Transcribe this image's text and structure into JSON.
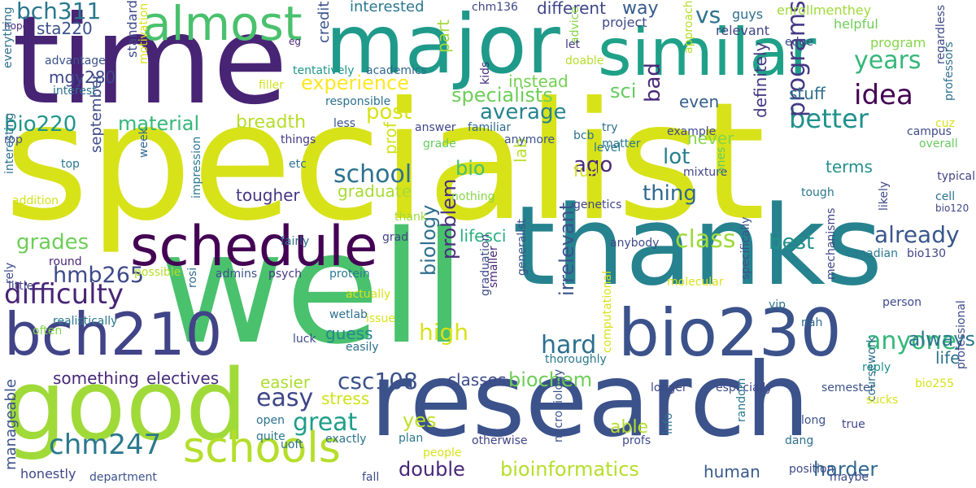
{
  "words": [
    {
      "text": "specialist",
      "color": "#d8e219"
    },
    {
      "text": "well",
      "color": "#4ac16d"
    },
    {
      "text": "time",
      "color": "#482475"
    },
    {
      "text": "major",
      "color": "#1f9a8a"
    },
    {
      "text": "similar",
      "color": "#1fa188"
    },
    {
      "text": "thanks",
      "color": "#26828e"
    },
    {
      "text": "research",
      "color": "#3b528b"
    },
    {
      "text": "good",
      "color": "#a0da39"
    },
    {
      "text": "schedule",
      "color": "#440154"
    },
    {
      "text": "bio230",
      "color": "#3b528b"
    },
    {
      "text": "bch210",
      "color": "#414487"
    },
    {
      "text": "almost",
      "color": "#4ac16d"
    },
    {
      "text": "schools",
      "color": "#b5de2b"
    },
    {
      "text": "anyone",
      "color": "#35b779"
    },
    {
      "text": "difficulty",
      "color": "#482475"
    },
    {
      "text": "chm247",
      "color": "#2a788e"
    },
    {
      "text": "years",
      "color": "#35b779"
    },
    {
      "text": "bch311",
      "color": "#2a788e"
    },
    {
      "text": "idea",
      "color": "#440154"
    },
    {
      "text": "better",
      "color": "#21918c"
    },
    {
      "text": "class",
      "color": "#a0da39"
    },
    {
      "text": "already",
      "color": "#39568c"
    },
    {
      "text": "hard",
      "color": "#2d708e"
    },
    {
      "text": "hmb265",
      "color": "#3e4989"
    },
    {
      "text": "school",
      "color": "#2c728e"
    },
    {
      "text": "great",
      "color": "#1f9e89"
    },
    {
      "text": "easy",
      "color": "#404688"
    },
    {
      "text": "csc108",
      "color": "#3b528b"
    },
    {
      "text": "bioinformatics",
      "color": "#b5de2b"
    },
    {
      "text": "biochem",
      "color": "#6ece58"
    },
    {
      "text": "experience",
      "color": "#fde725"
    },
    {
      "text": "specialists",
      "color": "#6ece58"
    },
    {
      "text": "material",
      "color": "#35b779"
    },
    {
      "text": "breadth",
      "color": "#b5de2b"
    },
    {
      "text": "average",
      "color": "#25848e"
    },
    {
      "text": "grades",
      "color": "#6ece58"
    },
    {
      "text": "high",
      "color": "#d8e219"
    },
    {
      "text": "lot",
      "color": "#277f8e"
    },
    {
      "text": "thing",
      "color": "#31688e"
    },
    {
      "text": "post",
      "color": "#d8e219"
    },
    {
      "text": "best",
      "color": "#21918c"
    },
    {
      "text": "programs",
      "color": "#443983"
    },
    {
      "text": "electives",
      "color": "#472d7b"
    },
    {
      "text": "something",
      "color": "#482878"
    },
    {
      "text": "double",
      "color": "#482878"
    },
    {
      "text": "harder",
      "color": "#31688e"
    },
    {
      "text": "biology",
      "color": "#2d708e"
    },
    {
      "text": "problem",
      "color": "#472f7d"
    },
    {
      "text": "always",
      "color": "#2a788e"
    },
    {
      "text": "bio220",
      "color": "#1f968b"
    },
    {
      "text": "mgy280",
      "color": "#3e4989"
    },
    {
      "text": "sta220",
      "color": "#3b528b"
    },
    {
      "text": "vs",
      "color": "#2c728e"
    },
    {
      "text": "interested",
      "color": "#2a788e"
    },
    {
      "text": "different",
      "color": "#404688"
    },
    {
      "text": "way",
      "color": "#375a8c"
    },
    {
      "text": "tougher",
      "color": "#453781"
    },
    {
      "text": "graduate",
      "color": "#a8db34"
    },
    {
      "text": "ago",
      "color": "#482878"
    },
    {
      "text": "bio",
      "color": "#46c06f"
    },
    {
      "text": "lifesci",
      "color": "#29af7f"
    },
    {
      "text": "bad",
      "color": "#482878"
    },
    {
      "text": "sci",
      "color": "#65cb5e"
    },
    {
      "text": "even",
      "color": "#355f8d"
    },
    {
      "text": "stuff",
      "color": "#2d708e"
    },
    {
      "text": "never",
      "color": "#86d549"
    },
    {
      "text": "definitely",
      "color": "#443983"
    },
    {
      "text": "terms",
      "color": "#21918c"
    },
    {
      "text": "classes",
      "color": "#3e4a89"
    },
    {
      "text": "easier",
      "color": "#addc30"
    },
    {
      "text": "guess",
      "color": "#23898e"
    },
    {
      "text": "irrelevant",
      "color": "#3b528b"
    },
    {
      "text": "able",
      "color": "#b5de2b"
    },
    {
      "text": "human",
      "color": "#38598c"
    },
    {
      "text": "life",
      "color": "#2c728e"
    },
    {
      "text": "stress",
      "color": "#d0e11c"
    },
    {
      "text": "yes",
      "color": "#bddf26"
    },
    {
      "text": "full",
      "color": "#d8e219"
    },
    {
      "text": "instead",
      "color": "#75d054"
    },
    {
      "text": "september",
      "color": "#3e4a89"
    },
    {
      "text": "manageable",
      "color": "#3b528b"
    },
    {
      "text": "honestly",
      "color": "#404688"
    },
    {
      "text": "lab",
      "color": "#b8de29"
    },
    {
      "text": "prof",
      "color": "#d2e21b"
    },
    {
      "text": "part",
      "color": "#a0da39"
    },
    {
      "text": "credit",
      "color": "#3b528b"
    },
    {
      "text": "project",
      "color": "#3e4a89"
    },
    {
      "text": "guys",
      "color": "#2d708e"
    },
    {
      "text": "enrollmenthey",
      "color": "#a0da39"
    },
    {
      "text": "helpful",
      "color": "#6ece58"
    },
    {
      "text": "program",
      "color": "#86d549"
    },
    {
      "text": "relevant",
      "color": "#414487"
    },
    {
      "text": "edge",
      "color": "#3e4a89"
    },
    {
      "text": "chm136",
      "color": "#404688"
    },
    {
      "text": "hope",
      "color": "#472d7b"
    },
    {
      "text": "eg",
      "color": "#482878"
    },
    {
      "text": "standard",
      "color": "#3e4a89"
    },
    {
      "text": "advantage",
      "color": "#3b528b"
    },
    {
      "text": "everything",
      "color": "#2d708e"
    },
    {
      "text": "interest",
      "color": "#2c728e"
    },
    {
      "text": "motivation",
      "color": "#d8e219"
    },
    {
      "text": "tentatively",
      "color": "#1f968b"
    },
    {
      "text": "academics",
      "color": "#31688e"
    },
    {
      "text": "filler",
      "color": "#d2e21b"
    },
    {
      "text": "responsible",
      "color": "#2c728e"
    },
    {
      "text": "kids",
      "color": "#472d7b"
    },
    {
      "text": "advice",
      "color": "#86d549"
    },
    {
      "text": "let",
      "color": "#443983"
    },
    {
      "text": "doable",
      "color": "#b5de2b"
    },
    {
      "text": "approach",
      "color": "#b5de2b"
    },
    {
      "text": "regardless",
      "color": "#3e4a89"
    },
    {
      "text": "professors",
      "color": "#2d708e"
    },
    {
      "text": "rop",
      "color": "#3e4a89"
    },
    {
      "text": "less",
      "color": "#3b528b"
    },
    {
      "text": "answer",
      "color": "#404688"
    },
    {
      "text": "familiar",
      "color": "#31688e"
    },
    {
      "text": "try",
      "color": "#2d708e"
    },
    {
      "text": "bcb",
      "color": "#2c728e"
    },
    {
      "text": "matter",
      "color": "#2a788e"
    },
    {
      "text": "example",
      "color": "#3e4a89"
    },
    {
      "text": "cuz",
      "color": "#d8e219"
    },
    {
      "text": "campus",
      "color": "#3e4a89"
    },
    {
      "text": "overall",
      "color": "#65cb5e"
    },
    {
      "text": "typical",
      "color": "#414487"
    },
    {
      "text": "tough",
      "color": "#2a788e"
    },
    {
      "text": "cell",
      "color": "#2c728e"
    },
    {
      "text": "bio120",
      "color": "#404688"
    },
    {
      "text": "things",
      "color": "#443983"
    },
    {
      "text": "grade",
      "color": "#65cb5e"
    },
    {
      "text": "anymore",
      "color": "#3b528b"
    },
    {
      "text": "level",
      "color": "#2a788e"
    },
    {
      "text": "mixture",
      "color": "#414487"
    },
    {
      "text": "ones",
      "color": "#65cb5e"
    },
    {
      "text": "likely",
      "color": "#3e4a89"
    },
    {
      "text": "top",
      "color": "#2a788e"
    },
    {
      "text": "etc",
      "color": "#2c728e"
    },
    {
      "text": "week",
      "color": "#31688e"
    },
    {
      "text": "impression",
      "color": "#2a788e"
    },
    {
      "text": "nothing",
      "color": "#86d549"
    },
    {
      "text": "genetics",
      "color": "#404688"
    },
    {
      "text": "interesting",
      "color": "#2d708e"
    },
    {
      "text": "addition",
      "color": "#d2e21b"
    },
    {
      "text": "thank",
      "color": "#a0da39"
    },
    {
      "text": "grad",
      "color": "#404688"
    },
    {
      "text": "fairly",
      "color": "#2d708e"
    },
    {
      "text": "anybody",
      "color": "#3e4a89"
    },
    {
      "text": "canadian",
      "color": "#2a788e"
    },
    {
      "text": "bio130",
      "color": "#404688"
    },
    {
      "text": "round",
      "color": "#482878"
    },
    {
      "text": "possible",
      "color": "#b5de2b"
    },
    {
      "text": "rely",
      "color": "#3e4a89"
    },
    {
      "text": "admins",
      "color": "#3b528b"
    },
    {
      "text": "psych",
      "color": "#443983"
    },
    {
      "text": "protein",
      "color": "#2a788e"
    },
    {
      "text": "smaller",
      "color": "#482878"
    },
    {
      "text": "little",
      "color": "#414487"
    },
    {
      "text": "actually",
      "color": "#d8e219"
    },
    {
      "text": "graduation",
      "color": "#3e4a89"
    },
    {
      "text": "generalist",
      "color": "#3b528b"
    },
    {
      "text": "molecular",
      "color": "#d8e219"
    },
    {
      "text": "specifically",
      "color": "#3b528b"
    },
    {
      "text": "mechanisms",
      "color": "#404688"
    },
    {
      "text": "person",
      "color": "#3e4a89"
    },
    {
      "text": "rosi",
      "color": "#31688e"
    },
    {
      "text": "yip",
      "color": "#2c728e"
    },
    {
      "text": "realistically",
      "color": "#2a788e"
    },
    {
      "text": "issue",
      "color": "#d8e219"
    },
    {
      "text": "wetlab",
      "color": "#2d708e"
    },
    {
      "text": "nah",
      "color": "#31688e"
    },
    {
      "text": "often",
      "color": "#86d549"
    },
    {
      "text": "luck",
      "color": "#3e4a89"
    },
    {
      "text": "easily",
      "color": "#2d708e"
    },
    {
      "text": "thoroughly",
      "color": "#2a788e"
    },
    {
      "text": "computational",
      "color": "#d8e219"
    },
    {
      "text": "reply",
      "color": "#21918c"
    },
    {
      "text": "semester",
      "color": "#3b528b"
    },
    {
      "text": "bio255",
      "color": "#d8e219"
    },
    {
      "text": "longer",
      "color": "#3e4a89"
    },
    {
      "text": "especially",
      "color": "#3e4a89"
    },
    {
      "text": "professional",
      "color": "#3e4a89"
    },
    {
      "text": "open",
      "color": "#2c728e"
    },
    {
      "text": "quite",
      "color": "#2a788e"
    },
    {
      "text": "uoft",
      "color": "#2d708e"
    },
    {
      "text": "exactly",
      "color": "#2c728e"
    },
    {
      "text": "plan",
      "color": "#2a788e"
    },
    {
      "text": "people",
      "color": "#d8e219"
    },
    {
      "text": "otherwise",
      "color": "#414487"
    },
    {
      "text": "microbiology",
      "color": "#3b528b"
    },
    {
      "text": "profs",
      "color": "#3e4a89"
    },
    {
      "text": "info",
      "color": "#2c728e"
    },
    {
      "text": "random",
      "color": "#2a788e"
    },
    {
      "text": "dang",
      "color": "#2d708e"
    },
    {
      "text": "position",
      "color": "#3e4a89"
    },
    {
      "text": "long",
      "color": "#3b528b"
    },
    {
      "text": "true",
      "color": "#404688"
    },
    {
      "text": "coursework",
      "color": "#2d708e"
    },
    {
      "text": "sucks",
      "color": "#d8e219"
    },
    {
      "text": "department",
      "color": "#3b528b"
    },
    {
      "text": "fall",
      "color": "#3e4a89"
    },
    {
      "text": "maybe",
      "color": "#3e4a89"
    }
  ]
}
